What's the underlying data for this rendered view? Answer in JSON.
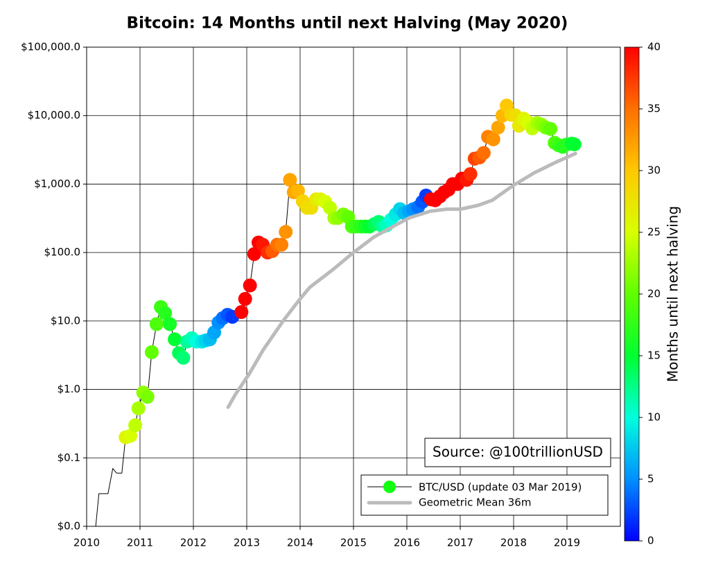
{
  "chart_data": {
    "type": "scatter",
    "title": "Bitcoin: 14 Months until next Halving (May 2020)",
    "annotation": "Source: @100trillionUSD",
    "colorbar_label": "Months until next halving",
    "log_y": true,
    "grid": true,
    "legend": "lower right",
    "xlim": [
      2010,
      2020
    ],
    "xticks": [
      2010,
      2011,
      2012,
      2013,
      2014,
      2015,
      2016,
      2017,
      2018,
      2019
    ],
    "ylim": [
      0.01,
      100000
    ],
    "yticks": [
      {
        "value": 0.01,
        "label": "$0.0"
      },
      {
        "value": 0.1,
        "label": "$0.1"
      },
      {
        "value": 1,
        "label": "$1.0"
      },
      {
        "value": 10,
        "label": "$10.0"
      },
      {
        "value": 100,
        "label": "$100.0"
      },
      {
        "value": 1000,
        "label": "$1,000.0"
      },
      {
        "value": 10000,
        "label": "$10,000.0"
      },
      {
        "value": 100000,
        "label": "$100,000.0"
      }
    ],
    "clim": [
      0,
      40
    ],
    "cticks": [
      0,
      5,
      10,
      15,
      20,
      25,
      30,
      35,
      40
    ],
    "colormap": [
      "#0000ff",
      "#0090ff",
      "#00ffdd",
      "#00ff30",
      "#60ff00",
      "#d8ff00",
      "#ffc800",
      "#ff7000",
      "#ff0000"
    ],
    "series": [
      {
        "name": "BTC/USD (update 03 Mar 2019)",
        "color": "#000000",
        "marker_color": "#11ff11",
        "x": [
          2010.17,
          2010.23,
          2010.4,
          2010.49,
          2010.56,
          2010.66,
          2010.73,
          2010.82,
          2010.91,
          2010.97,
          2011.06,
          2011.14,
          2011.22,
          2011.31,
          2011.39,
          2011.47,
          2011.56,
          2011.65,
          2011.73,
          2011.81,
          2011.88,
          2011.97,
          2012.06,
          2012.16,
          2012.23,
          2012.31,
          2012.39,
          2012.47,
          2012.55,
          2012.64,
          2012.73,
          2012.9,
          2012.97,
          2013.06,
          2013.14,
          2013.22,
          2013.3,
          2013.39,
          2013.48,
          2013.57,
          2013.65,
          2013.73,
          2013.81,
          2013.88,
          2013.96,
          2014.05,
          2014.13,
          2014.21,
          2014.3,
          2014.38,
          2014.47,
          2014.56,
          2014.64,
          2014.71,
          2014.81,
          2014.9,
          2014.97,
          2015.05,
          2015.14,
          2015.22,
          2015.3,
          2015.39,
          2015.47,
          2015.55,
          2015.62,
          2015.7,
          2015.79,
          2015.87,
          2015.95,
          2016.04,
          2016.12,
          2016.21,
          2016.29,
          2016.36,
          2016.45,
          2016.53,
          2016.62,
          2016.7,
          2016.78,
          2016.86,
          2016.95,
          2017.03,
          2017.12,
          2017.19,
          2017.27,
          2017.36,
          2017.44,
          2017.52,
          2017.62,
          2017.71,
          2017.79,
          2017.87,
          2017.95,
          2018.03,
          2018.1,
          2018.19,
          2018.27,
          2018.35,
          2018.44,
          2018.52,
          2018.6,
          2018.69,
          2018.77,
          2018.84,
          2018.92,
          2019.0,
          2019.09,
          2019.14
        ],
        "values": [
          0.01,
          0.03,
          0.03,
          0.07,
          0.06,
          0.06,
          0.2,
          0.21,
          0.3,
          0.53,
          0.9,
          0.78,
          3.5,
          9,
          16,
          13,
          9,
          5.4,
          3.4,
          2.9,
          5,
          5.6,
          5,
          5,
          5.2,
          5.4,
          6.8,
          9.5,
          11,
          12.3,
          11.5,
          13.5,
          21,
          33,
          95,
          140,
          130,
          100,
          105,
          130,
          130,
          200,
          1150,
          760,
          800,
          560,
          450,
          450,
          600,
          600,
          550,
          450,
          320,
          320,
          360,
          330,
          240,
          240,
          240,
          240,
          240,
          260,
          280,
          240,
          250,
          300,
          360,
          430,
          380,
          400,
          430,
          460,
          550,
          680,
          600,
          580,
          660,
          760,
          830,
          1000,
          1000,
          1200,
          1150,
          1400,
          2350,
          2450,
          2850,
          4900,
          4500,
          6700,
          10000,
          14000,
          10300,
          10100,
          7100,
          9000,
          8000,
          6500,
          7800,
          7400,
          6700,
          6400,
          4000,
          3700,
          3500,
          3800,
          3900,
          3800
        ],
        "months": [
          null,
          null,
          null,
          null,
          null,
          null,
          26,
          25,
          24,
          23,
          22,
          21,
          20,
          19,
          18,
          17,
          16,
          15,
          14,
          13,
          12,
          11,
          10,
          9,
          8,
          7,
          6,
          5,
          4,
          3,
          2,
          43,
          43,
          42,
          41,
          40,
          39,
          38,
          36,
          35,
          34,
          33,
          32,
          32,
          31,
          29,
          28,
          28,
          27,
          26,
          25,
          24,
          23,
          22,
          21,
          20,
          19,
          18,
          17,
          16,
          15,
          14,
          13,
          12,
          11,
          10,
          9,
          8,
          7,
          6,
          5,
          4,
          3,
          2,
          47,
          46,
          45,
          44,
          43,
          42,
          41,
          40,
          39,
          38,
          37,
          36,
          35,
          34,
          33,
          32,
          31,
          30,
          29,
          28,
          27,
          26,
          25,
          24,
          23,
          22,
          21,
          20,
          19,
          18,
          17,
          17,
          15,
          15
        ]
      },
      {
        "name": "Geometric Mean 36m",
        "color": "#bbbbbb",
        "x": [
          2012.65,
          2012.79,
          2013.05,
          2013.31,
          2013.7,
          2014.0,
          2014.18,
          2014.61,
          2015.0,
          2015.39,
          2015.78,
          2016.04,
          2016.43,
          2016.75,
          2017.01,
          2017.34,
          2017.6,
          2017.99,
          2018.38,
          2018.77,
          2019.16
        ],
        "values": [
          0.55,
          0.85,
          1.7,
          3.8,
          10.5,
          21,
          31,
          56,
          100,
          170,
          250,
          320,
          400,
          430,
          430,
          490,
          580,
          950,
          1450,
          2050,
          2800
        ]
      }
    ]
  }
}
